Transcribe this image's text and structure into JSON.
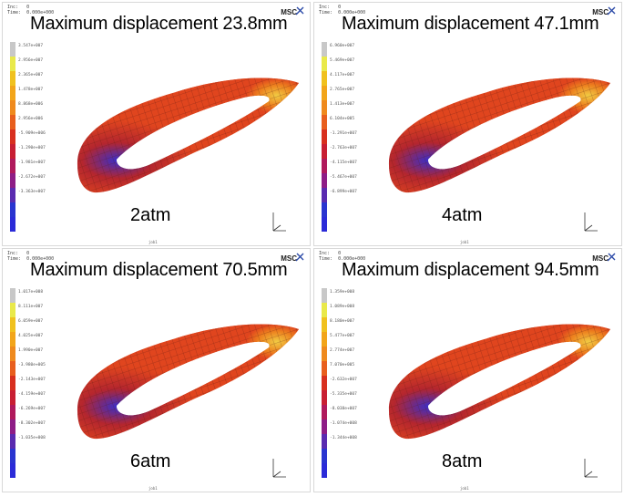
{
  "header": {
    "inc": "Inc:   0",
    "time": "Time:  0.000e+000"
  },
  "brand": "MSC",
  "job_label": "job1",
  "legend_colors": [
    "#c8c8c8",
    "#e9e94a",
    "#f0c11e",
    "#f2a51a",
    "#ef8a1e",
    "#e85f1e",
    "#d8301f",
    "#c81f33",
    "#b01a5c",
    "#8e1d86",
    "#5a2bb0",
    "#2a35d0",
    "#2b2bd8"
  ],
  "panels": [
    {
      "title": "Maximum displacement 23.8mm",
      "pressure": "2atm",
      "ticks": [
        "3.547e+007",
        "2.956e+007",
        "2.365e+007",
        "1.478e+007",
        "8.868e+006",
        "2.956e+006",
        "-5.909e+006",
        "-1.290e+007",
        "-1.981e+007",
        "-2.672e+007",
        "-3.363e+007"
      ]
    },
    {
      "title": "Maximum displacement 47.1mm",
      "pressure": "4atm",
      "ticks": [
        "6.960e+007",
        "5.469e+007",
        "4.117e+007",
        "2.765e+007",
        "1.413e+007",
        "6.104e+005",
        "-1.291e+007",
        "-2.763e+007",
        "-4.115e+007",
        "-5.467e+007",
        "-6.899e+007"
      ]
    },
    {
      "title": "Maximum displacement 70.5mm",
      "pressure": "6atm",
      "ticks": [
        "1.017e+008",
        "8.111e+007",
        "6.059e+007",
        "4.025e+007",
        "1.990e+007",
        "-3.980e+005",
        "-2.143e+007",
        "-4.159e+007",
        "-6.269e+007",
        "-8.302e+007",
        "-1.035e+008"
      ]
    },
    {
      "title": "Maximum displacement 94.5mm",
      "pressure": "8atm",
      "ticks": [
        "1.359e+008",
        "1.089e+008",
        "8.180e+007",
        "5.477e+007",
        "2.774e+007",
        "7.070e+005",
        "-2.632e+007",
        "-5.335e+007",
        "-8.038e+007",
        "-1.074e+008",
        "-1.344e+008"
      ]
    }
  ]
}
